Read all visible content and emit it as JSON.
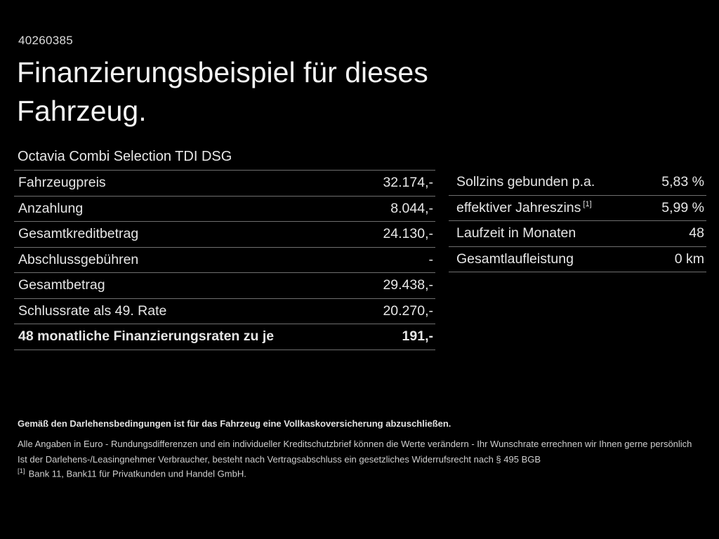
{
  "page": {
    "doc_id": "40260385",
    "title": "Finanzierungsbeispiel für dieses Fahrzeug.",
    "subtitle": "Octavia Combi Selection TDI DSG"
  },
  "left_table": {
    "rows": [
      {
        "label": "Fahrzeugpreis",
        "value": "32.174,-",
        "bold": false
      },
      {
        "label": "Anzahlung",
        "value": "8.044,-",
        "bold": false
      },
      {
        "label": "Gesamtkreditbetrag",
        "value": "24.130,-",
        "bold": false
      },
      {
        "label": "Abschlussgebühren",
        "value": "-",
        "bold": false
      },
      {
        "label": "Gesamtbetrag",
        "value": "29.438,-",
        "bold": false
      },
      {
        "label": "Schlussrate als 49. Rate",
        "value": "20.270,-",
        "bold": false
      },
      {
        "label": "48 monatliche Finanzierungsraten zu je",
        "value": "191,-",
        "bold": true
      }
    ]
  },
  "right_table": {
    "rows": [
      {
        "label": "Sollzins gebunden p.a.",
        "value": "5,83 %",
        "bold": false
      },
      {
        "label": "effektiver Jahreszins",
        "label_sup": "[1]",
        "value": "5,99 %",
        "bold": false
      },
      {
        "label": "Laufzeit in Monaten",
        "value": "48",
        "bold": false
      },
      {
        "label": "Gesamtlaufleistung",
        "value": "0 km",
        "bold": false
      }
    ]
  },
  "footer": {
    "line1": "Gemäß den Darlehensbedingungen ist für das Fahrzeug eine Vollkaskoversicherung abzuschließen.",
    "line2": "Alle Angaben in Euro - Rundungsdifferenzen und ein individueller Kreditschutzbrief können die Werte verändern - Ihr Wunschrate errechnen wir Ihnen gerne persönlich",
    "line3": "Ist der Darlehens-/Leasingnehmer Verbraucher, besteht nach Vertragsabschluss ein gesetzliches Widerrufsrecht nach § 495 BGB",
    "footnote_marker": "[1]",
    "footnote_text": "Bank 11, Bank11 für Privatkunden und Handel GmbH."
  },
  "colors": {
    "background": "#000000",
    "text": "#e9e9e9",
    "divider": "#6f6f6f"
  }
}
